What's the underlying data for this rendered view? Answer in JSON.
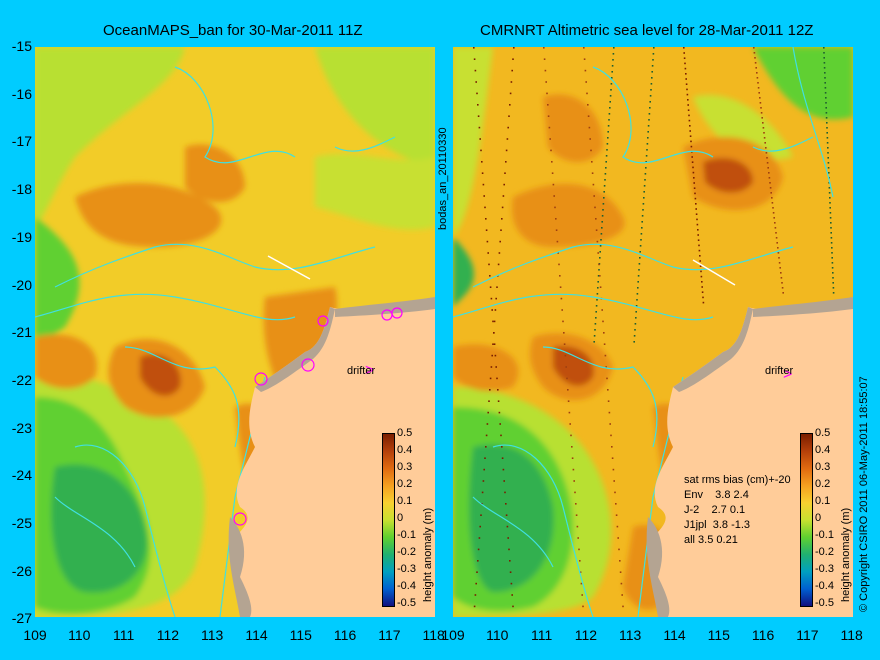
{
  "left_panel": {
    "title": "OceanMAPS_ban for 30-Mar-2011 11Z"
  },
  "right_panel": {
    "title": "CMRNRT Altimetric sea level  for 28-Mar-2011 12Z"
  },
  "axes": {
    "y_ticks": [
      "-15",
      "-16",
      "-17",
      "-18",
      "-19",
      "-20",
      "-21",
      "-22",
      "-23",
      "-24",
      "-25",
      "-26",
      "-27"
    ],
    "x_ticks_left": [
      "109",
      "110",
      "111",
      "112",
      "113",
      "114",
      "115",
      "116",
      "117",
      "118"
    ],
    "x_ticks_right": [
      "109",
      "110",
      "111",
      "112",
      "113",
      "114",
      "115",
      "116",
      "117",
      "118"
    ]
  },
  "colorbar": {
    "label": "height anomaly (m)",
    "ticks": [
      "0.5",
      "0.4",
      "0.3",
      "0.2",
      "0.1",
      "0",
      "-0.1",
      "-0.2",
      "-0.3",
      "-0.4",
      "-0.5"
    ],
    "colors": [
      "#7a1e00",
      "#b5400a",
      "#e06a10",
      "#f5a020",
      "#f8d030",
      "#c8e030",
      "#60d030",
      "#20b070",
      "#00a0c0",
      "#0060d0",
      "#101080"
    ]
  },
  "middle_label": "bodas_an_20110330",
  "right_vertical_label": "© Copyright CSIRO 2011  06-May-2011 18:55:07",
  "drifter_label": "drifter",
  "stats": {
    "header": "sat rms bias (cm)+-20",
    "rows": [
      "Env    3.8 2.4",
      "J-2    2.7 0.1",
      "J1jpl  3.8 -1.3",
      "all 3.5 0.21"
    ]
  },
  "colors": {
    "background": "#00ccff",
    "land": "#ffcc99",
    "coast_gray": "#b4a492",
    "bathy_contour": "#40e0e0",
    "marker": "#ff00ff"
  }
}
